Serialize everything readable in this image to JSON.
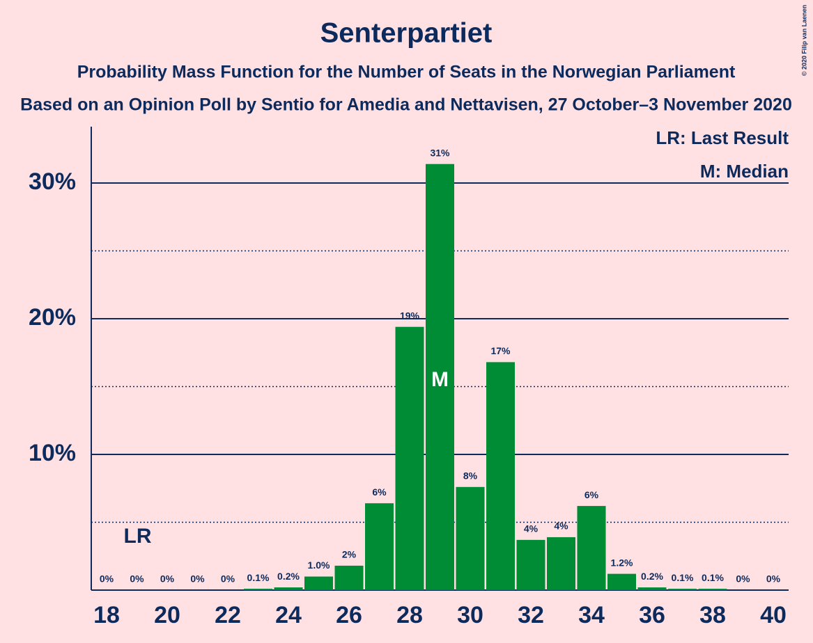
{
  "chart_data": {
    "type": "bar",
    "title": "Senterpartiet",
    "subtitle": "Probability Mass Function for the Number of Seats in the Norwegian Parliament",
    "subtitle2": "Based on an Opinion Poll by Sentio for Amedia and Nettavisen, 27 October–3 November 2020",
    "copyright": "© 2020 Filip van Laenen",
    "categories": [
      "18",
      null,
      "20",
      null,
      "22",
      null,
      "24",
      null,
      "26",
      null,
      "28",
      null,
      "30",
      null,
      "32",
      null,
      "34",
      null,
      "36",
      null,
      "38",
      null,
      "40"
    ],
    "values": [
      0,
      0,
      0,
      0,
      0,
      0.1,
      0.2,
      1.0,
      1.8,
      6.4,
      19.4,
      31.4,
      7.6,
      16.8,
      3.7,
      3.9,
      6.2,
      1.2,
      0.2,
      0.1,
      0.1,
      0,
      0
    ],
    "value_labels": [
      "0%",
      "0%",
      "0%",
      "0%",
      "0%",
      "0.1%",
      "0.2%",
      "1.0%",
      "2%",
      "6%",
      "19%",
      "31%",
      "8%",
      "17%",
      "4%",
      "4%",
      "6%",
      "1.2%",
      "0.2%",
      "0.1%",
      "0.1%",
      "0%",
      "0%"
    ],
    "color": "#008c35",
    "ylim": [
      0,
      34
    ],
    "yticks": [
      {
        "value": 10,
        "label": "10%"
      },
      {
        "value": 20,
        "label": "20%"
      },
      {
        "value": 30,
        "label": "30%"
      }
    ],
    "minor_yticks": [
      5,
      15,
      25
    ],
    "grid": true,
    "annotations": [
      {
        "text": "LR",
        "index": 1
      },
      {
        "text": "M",
        "index": 11
      }
    ],
    "legend": {
      "position": "upper right",
      "entries": [
        "LR: Last Result",
        "M: Median"
      ]
    }
  }
}
